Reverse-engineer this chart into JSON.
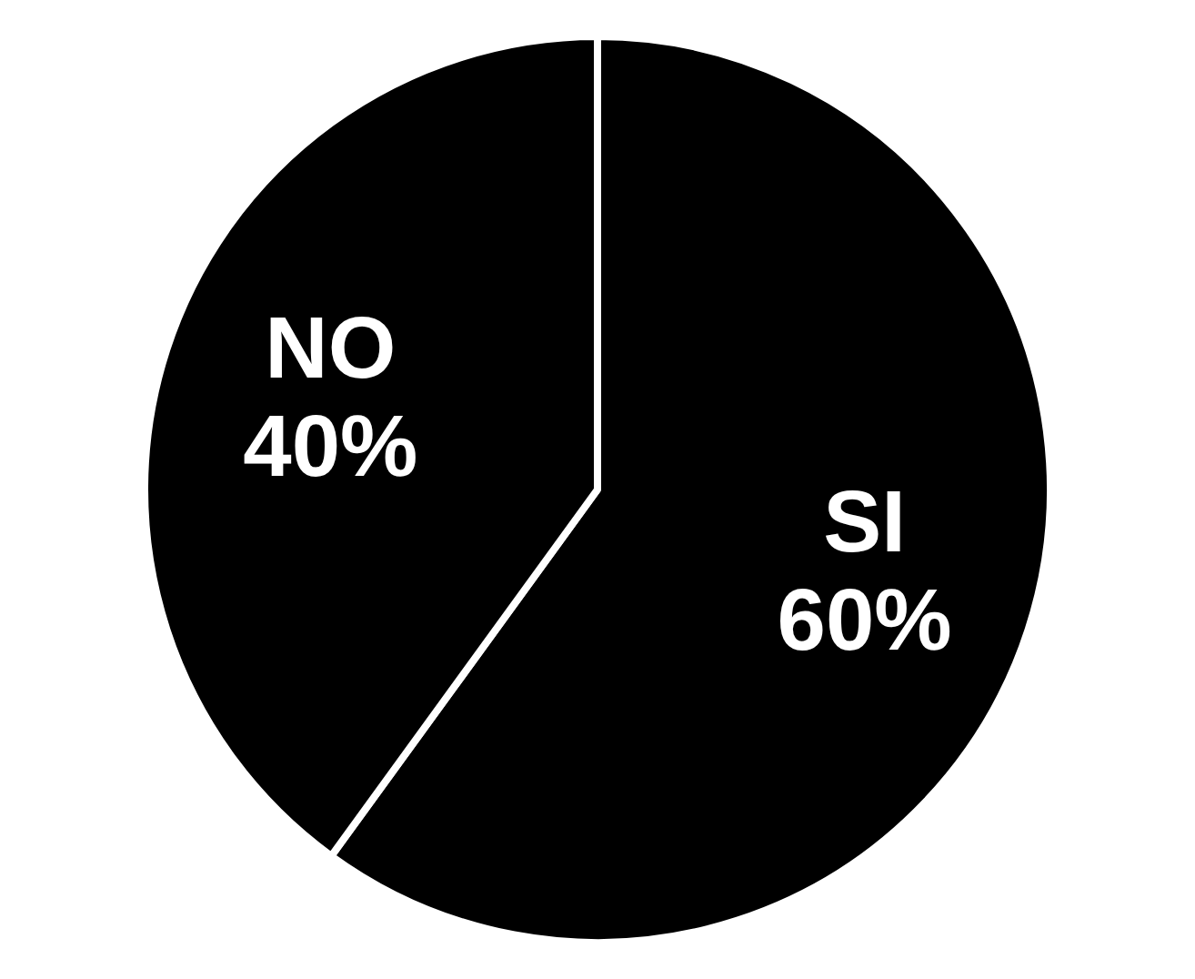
{
  "chart_data": {
    "type": "pie",
    "categories": [
      "SI",
      "NO"
    ],
    "values": [
      60,
      40
    ],
    "colors": [
      "#000000",
      "#000000"
    ],
    "value_labels": [
      "60%",
      "40%"
    ],
    "legend": false
  }
}
